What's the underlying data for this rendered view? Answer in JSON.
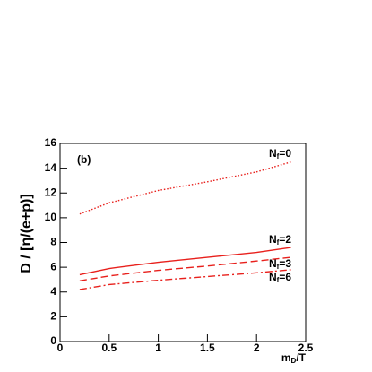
{
  "chart_data": {
    "type": "line",
    "annotation": "(b)",
    "xlabel": "mD/T",
    "ylabel": "D / [η/(e+p)]",
    "x": [
      0.2,
      0.5,
      1.0,
      1.5,
      2.0,
      2.35
    ],
    "series": [
      {
        "name": "Nf=0",
        "color": "#e8201c",
        "linestyle": "dotted",
        "values": [
          10.3,
          11.2,
          12.2,
          12.9,
          13.7,
          14.5
        ]
      },
      {
        "name": "Nf=2",
        "color": "#e8201c",
        "linestyle": "solid",
        "values": [
          5.4,
          5.9,
          6.4,
          6.8,
          7.2,
          7.6
        ]
      },
      {
        "name": "Nf=3",
        "color": "#e8201c",
        "linestyle": "dashed",
        "values": [
          4.9,
          5.3,
          5.75,
          6.1,
          6.5,
          6.8
        ]
      },
      {
        "name": "Nf=6",
        "color": "#e8201c",
        "linestyle": "dashdot",
        "values": [
          4.2,
          4.6,
          4.95,
          5.25,
          5.55,
          5.8
        ]
      }
    ],
    "xlim": [
      0,
      2.5
    ],
    "xticks": [
      0,
      0.5,
      1,
      1.5,
      2,
      2.5
    ],
    "ylim": [
      0,
      16
    ],
    "yticks": [
      0,
      2,
      4,
      6,
      8,
      10,
      12,
      14,
      16
    ]
  }
}
